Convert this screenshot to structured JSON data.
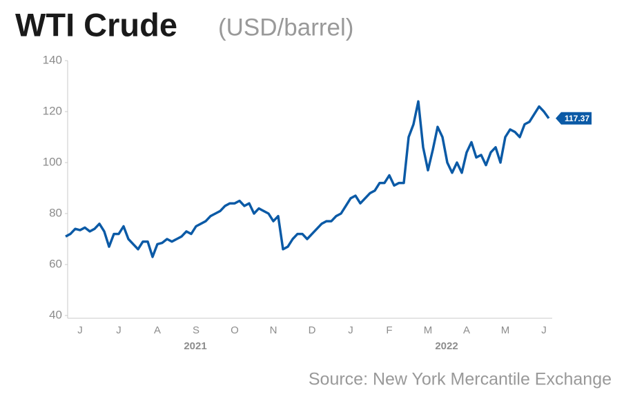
{
  "chart_data": {
    "type": "line",
    "title": "WTI Crude",
    "subtitle": "(USD/barrel)",
    "source": "Source: New York Mercantile Exchange",
    "categories": [
      null,
      null,
      null,
      "J",
      null,
      null,
      null,
      null,
      null,
      null,
      null,
      "J",
      null,
      null,
      null,
      null,
      null,
      null,
      null,
      "A",
      null,
      null,
      null,
      null,
      null,
      null,
      null,
      "S",
      null,
      null,
      null,
      null,
      null,
      null,
      null,
      "O",
      null,
      null,
      null,
      null,
      null,
      null,
      null,
      "N",
      null,
      null,
      null,
      null,
      null,
      null,
      null,
      "D",
      null,
      null,
      null,
      null,
      null,
      null,
      null,
      "J",
      null,
      null,
      null,
      null,
      null,
      null,
      null,
      "F",
      null,
      null,
      null,
      null,
      null,
      null,
      null,
      "M",
      null,
      null,
      null,
      null,
      null,
      null,
      null,
      "A",
      null,
      null,
      null,
      null,
      null,
      null,
      null,
      "M",
      null,
      null,
      null,
      null,
      null,
      null,
      null,
      "J",
      null
    ],
    "x_group_labels": [
      "2021",
      "2022"
    ],
    "series": [
      {
        "name": "WTI Crude",
        "color": "#0b5aa6",
        "values": [
          71,
          72,
          74,
          73.5,
          74.5,
          73,
          74,
          76,
          73,
          67,
          72,
          72,
          75,
          70,
          68,
          66,
          69,
          69,
          63,
          68,
          68.5,
          70,
          69,
          70,
          71,
          73,
          72,
          75,
          76,
          77,
          79,
          80,
          81,
          83,
          84,
          84,
          85,
          83,
          84,
          80,
          82,
          81,
          80,
          77,
          79,
          66,
          67,
          70,
          72,
          72,
          70,
          72,
          74,
          76,
          77,
          77,
          79,
          80,
          83,
          86,
          87,
          84,
          86,
          88,
          89,
          92,
          92,
          95,
          91,
          92,
          92,
          110,
          115,
          124,
          106,
          97,
          105,
          114,
          110,
          100,
          96,
          100,
          96,
          104,
          108,
          102,
          103,
          99,
          104,
          106,
          100,
          110,
          113,
          112,
          110,
          115,
          116,
          119,
          122,
          120,
          117.37
        ]
      }
    ],
    "ylim": [
      40,
      140
    ],
    "yticks": [
      40,
      60,
      80,
      100,
      120,
      140
    ],
    "grid": false
  }
}
